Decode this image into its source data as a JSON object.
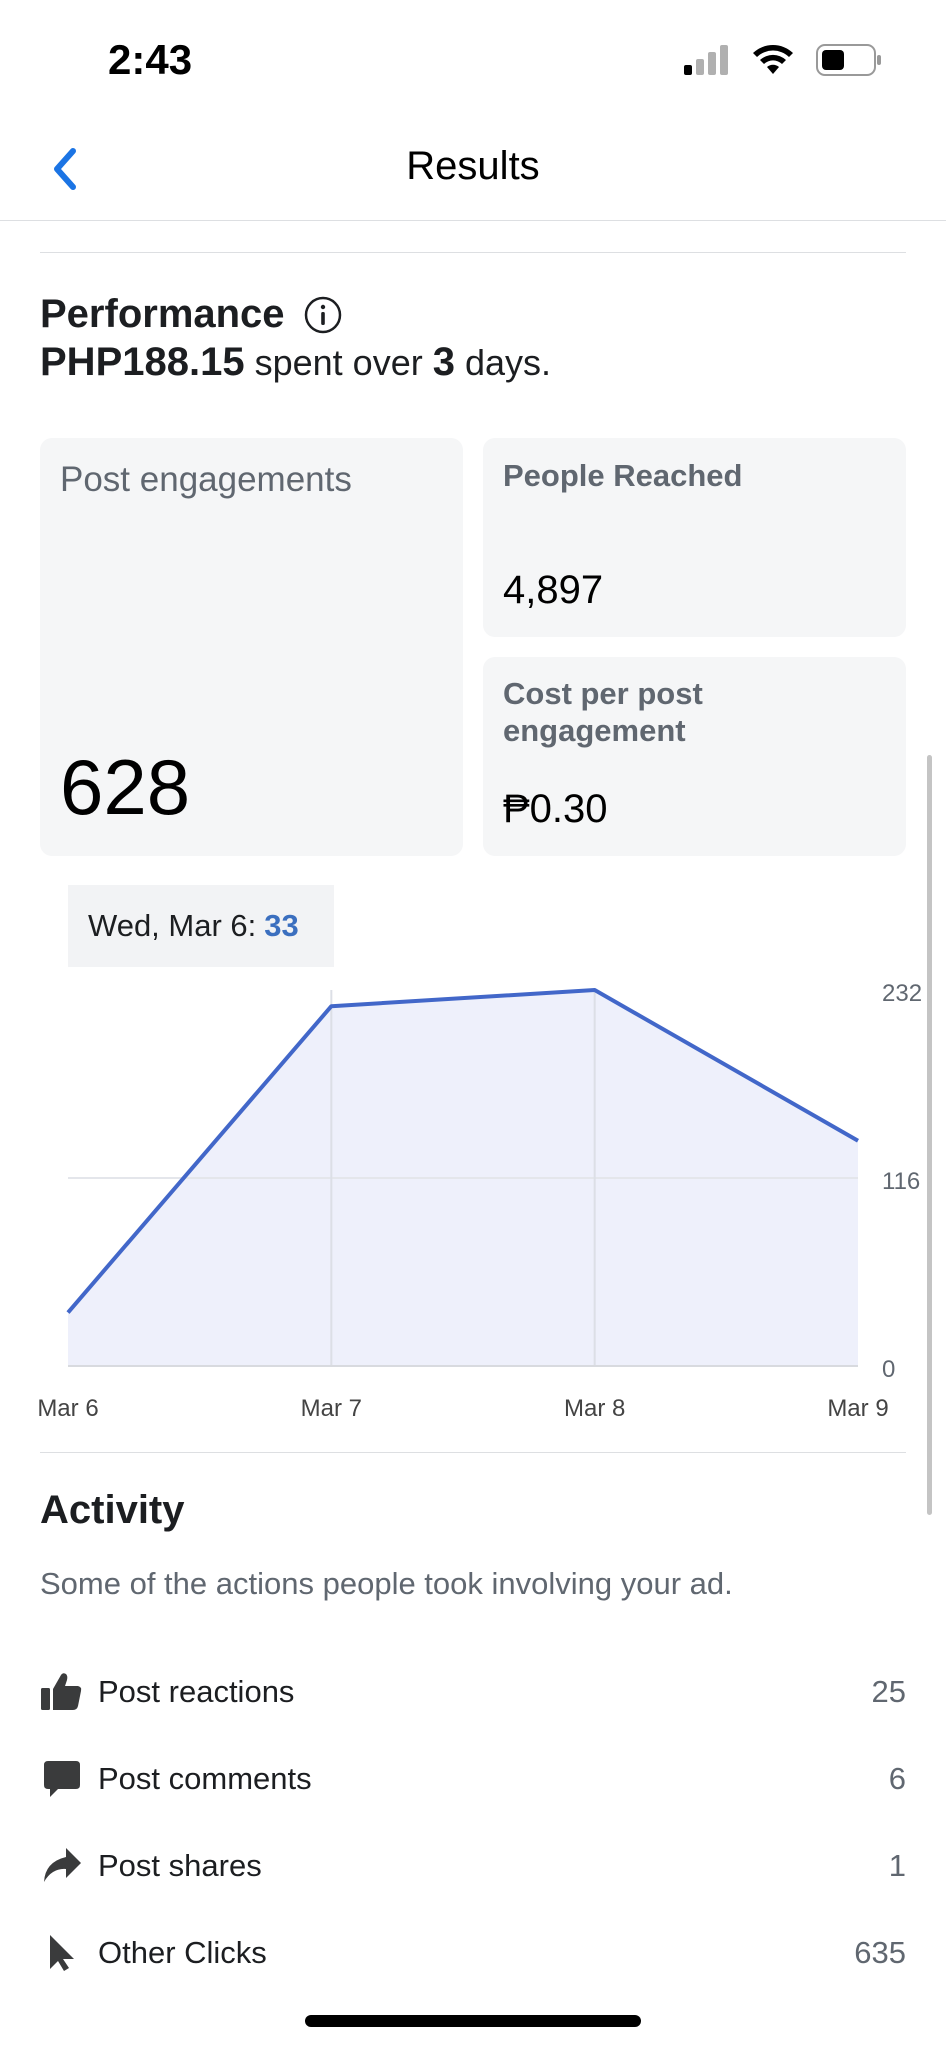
{
  "status": {
    "time": "2:43"
  },
  "nav": {
    "title": "Results"
  },
  "performance": {
    "title": "Performance",
    "amount": "PHP188.15",
    "spent_text": "spent over",
    "days": "3",
    "days_text": "days."
  },
  "cards": {
    "engagements": {
      "label": "Post engagements",
      "value": "628"
    },
    "reached": {
      "label": "People Reached",
      "value": "4,897"
    },
    "cost": {
      "label_line1": "Cost per post",
      "label_line2": "engagement",
      "value": "₱0.30"
    }
  },
  "tooltip": {
    "label": "Wed, Mar 6:",
    "value": "33"
  },
  "chart_data": {
    "type": "area",
    "x": [
      "Mar 6",
      "Mar 7",
      "Mar 8",
      "Mar 9"
    ],
    "series": [
      {
        "values": [
          33,
          222,
          232,
          139
        ]
      }
    ],
    "y_ticks": [
      "0",
      "116",
      "232"
    ],
    "ylim": [
      0,
      232
    ],
    "grid": true,
    "line_color": "#4267c9",
    "fill_color": "#eef0fb"
  },
  "activity": {
    "title": "Activity",
    "subtitle": "Some of the actions people took involving your ad.",
    "items": [
      {
        "icon": "thumbs-up-icon",
        "label": "Post reactions",
        "value": "25"
      },
      {
        "icon": "comment-bubble-icon",
        "label": "Post comments",
        "value": "6"
      },
      {
        "icon": "share-arrow-icon",
        "label": "Post shares",
        "value": "1"
      },
      {
        "icon": "cursor-pointer-icon",
        "label": "Other Clicks",
        "value": "635"
      }
    ]
  }
}
